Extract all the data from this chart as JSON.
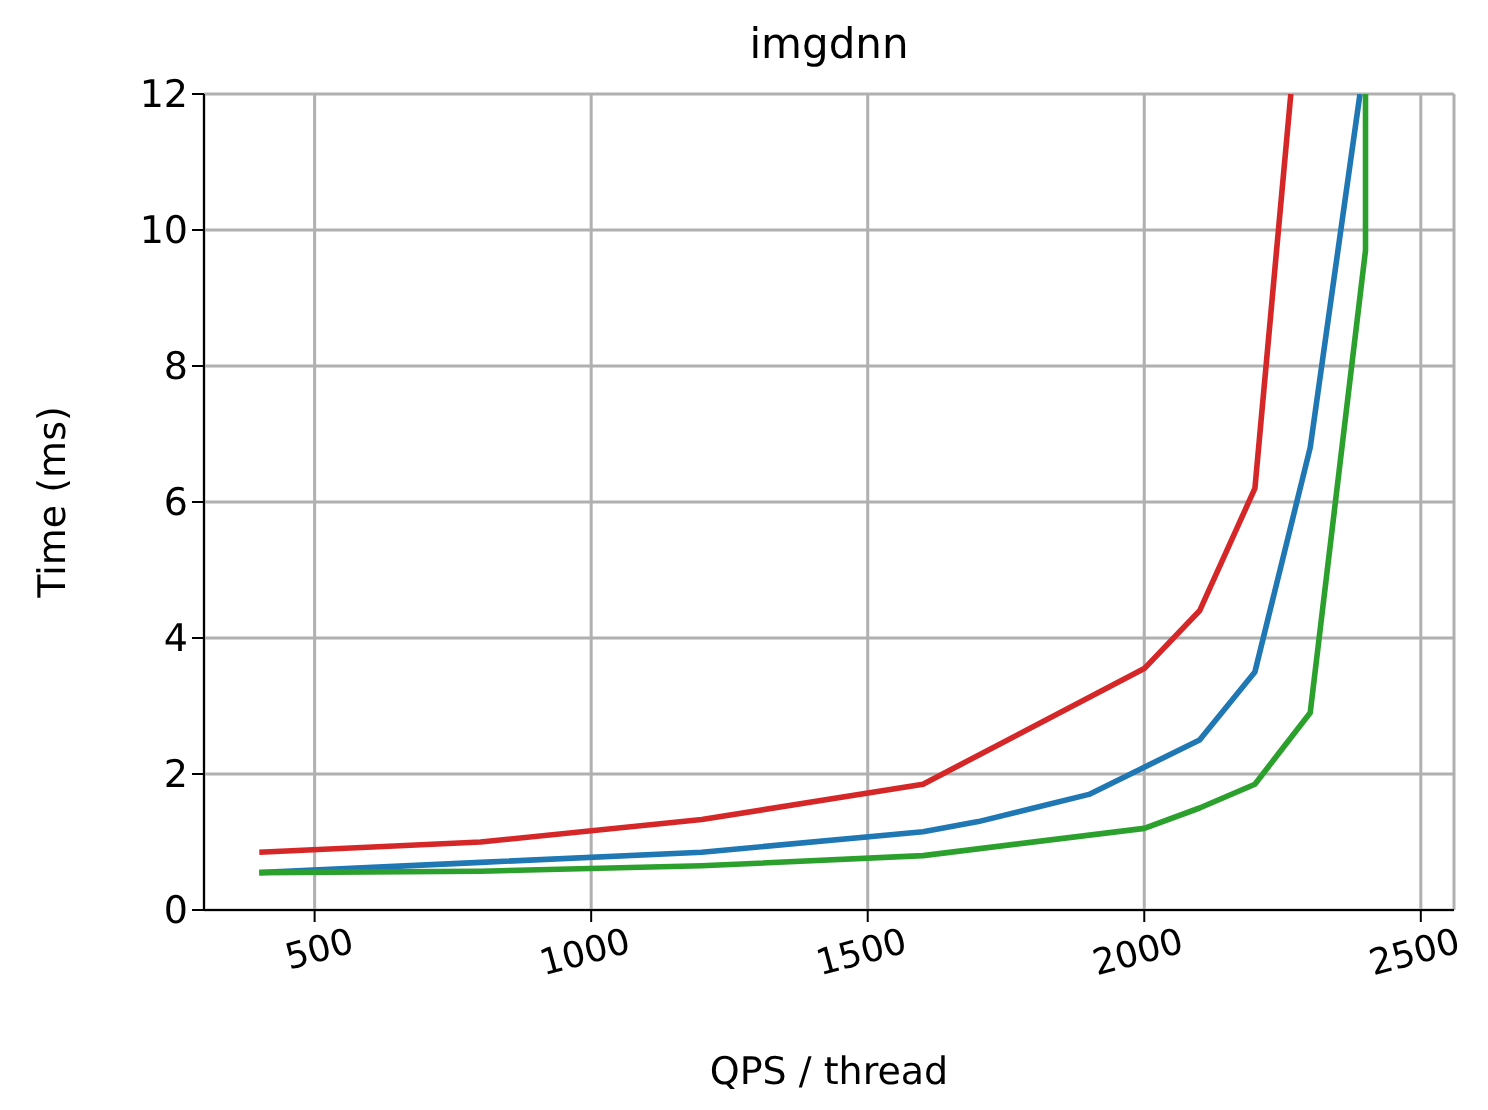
{
  "chart_data": {
    "type": "line",
    "title": "imgdnn",
    "xlabel": "QPS / thread",
    "ylabel": "Time (ms)",
    "xlim": [
      300,
      2560
    ],
    "xticks": [
      500,
      1000,
      1500,
      2000,
      2500
    ],
    "ylim": [
      0,
      12
    ],
    "yticks": [
      0,
      2,
      4,
      6,
      8,
      10,
      12
    ],
    "grid": true,
    "legend": false,
    "marker": "none",
    "line_style": "solid",
    "series": [
      {
        "color": "#d62728",
        "x": [
          400,
          800,
          1200,
          1600,
          2000,
          2100,
          2200,
          2265
        ],
        "values": [
          0.85,
          1.0,
          1.33,
          1.85,
          3.55,
          4.4,
          6.2,
          12
        ]
      },
      {
        "color": "#1f77b4",
        "x": [
          400,
          800,
          1200,
          1600,
          1700,
          1800,
          1900,
          2000,
          2100,
          2200,
          2300,
          2390
        ],
        "values": [
          0.55,
          0.7,
          0.85,
          1.15,
          1.3,
          1.5,
          1.7,
          2.1,
          2.5,
          3.5,
          6.8,
          12
        ]
      },
      {
        "color": "#2ca02c",
        "x": [
          400,
          800,
          1200,
          1600,
          2000,
          2100,
          2200,
          2300,
          2400,
          2400
        ],
        "values": [
          0.55,
          0.57,
          0.65,
          0.8,
          1.2,
          1.5,
          1.85,
          2.9,
          9.7,
          12
        ]
      }
    ]
  }
}
